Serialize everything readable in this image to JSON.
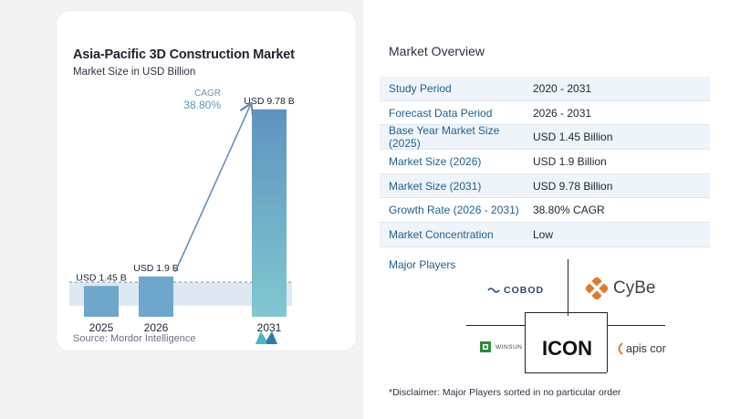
{
  "chart_data": {
    "type": "bar",
    "title": "Asia-Pacific 3D Construction Market",
    "subtitle": "Market Size in USD Billion",
    "categories": [
      "2025",
      "2026",
      "2031"
    ],
    "values": [
      1.45,
      1.9,
      9.78
    ],
    "data_labels": [
      "USD 1.45 B",
      "USD 1.9 B",
      "USD 9.78 B"
    ],
    "ylim": [
      0,
      10.2
    ],
    "grid": false,
    "annotation": {
      "label": "CAGR",
      "value": "38.80%"
    },
    "colors": {
      "bar_2025": "#6ea6cc",
      "bar_2026": "#6ea6cc",
      "bar_2031_top": "#5f93bf",
      "bar_2031_bottom": "#7fc6cf",
      "band": "#dde8f2",
      "arrow": "#6a8fb5",
      "cagr": "#5c96bd"
    }
  },
  "source": "Source:  Mordor Intelligence",
  "overview": {
    "title": "Market Overview",
    "rows": [
      {
        "label": "Study Period",
        "value": "2020 - 2031"
      },
      {
        "label": "Forecast Data Period",
        "value": "2026 - 2031"
      },
      {
        "label": "Base Year Market Size (2025)",
        "value": "USD 1.45 Billion"
      },
      {
        "label": "Market Size (2026)",
        "value": "USD 1.9 Billion"
      },
      {
        "label": "Market Size (2031)",
        "value": "USD 9.78 Billion"
      },
      {
        "label": "Growth Rate (2026 - 2031)",
        "value": "38.80% CAGR"
      },
      {
        "label": "Market Concentration",
        "value": "Low"
      }
    ]
  },
  "players": {
    "title": "Major Players",
    "logos": [
      "COBOD",
      "CyBe",
      "WINSUN",
      "ICON",
      "apis cor"
    ],
    "icons": [
      "cobod-logo-icon",
      "cybe-logo-icon",
      "winsun-logo-icon",
      "icon-logo",
      "apis-cor-logo-icon"
    ]
  },
  "disclaimer": "*Disclaimer: Major Players sorted in no particular order"
}
